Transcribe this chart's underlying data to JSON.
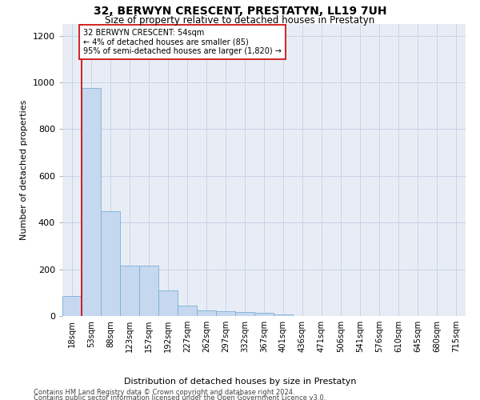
{
  "title": "32, BERWYN CRESCENT, PRESTATYN, LL19 7UH",
  "subtitle": "Size of property relative to detached houses in Prestatyn",
  "xlabel": "Distribution of detached houses by size in Prestatyn",
  "ylabel": "Number of detached properties",
  "bar_categories": [
    "18sqm",
    "53sqm",
    "88sqm",
    "123sqm",
    "157sqm",
    "192sqm",
    "227sqm",
    "262sqm",
    "297sqm",
    "332sqm",
    "367sqm",
    "401sqm",
    "436sqm",
    "471sqm",
    "506sqm",
    "541sqm",
    "576sqm",
    "610sqm",
    "645sqm",
    "680sqm",
    "715sqm"
  ],
  "bar_values": [
    85,
    975,
    450,
    215,
    215,
    110,
    45,
    25,
    22,
    18,
    12,
    8,
    0,
    0,
    0,
    0,
    0,
    0,
    0,
    0,
    0
  ],
  "bar_color": "#c5d8f0",
  "bar_edge_color": "#7aaed4",
  "property_line_color": "#cc0000",
  "annotation_text": "32 BERWYN CRESCENT: 54sqm\n← 4% of detached houses are smaller (85)\n95% of semi-detached houses are larger (1,820) →",
  "annotation_box_color": "#cc0000",
  "ylim": [
    0,
    1250
  ],
  "yticks": [
    0,
    200,
    400,
    600,
    800,
    1000,
    1200
  ],
  "grid_color": "#c8d4e8",
  "bg_color": "#e8edf5",
  "footer_line1": "Contains HM Land Registry data © Crown copyright and database right 2024.",
  "footer_line2": "Contains public sector information licensed under the Open Government Licence v3.0."
}
